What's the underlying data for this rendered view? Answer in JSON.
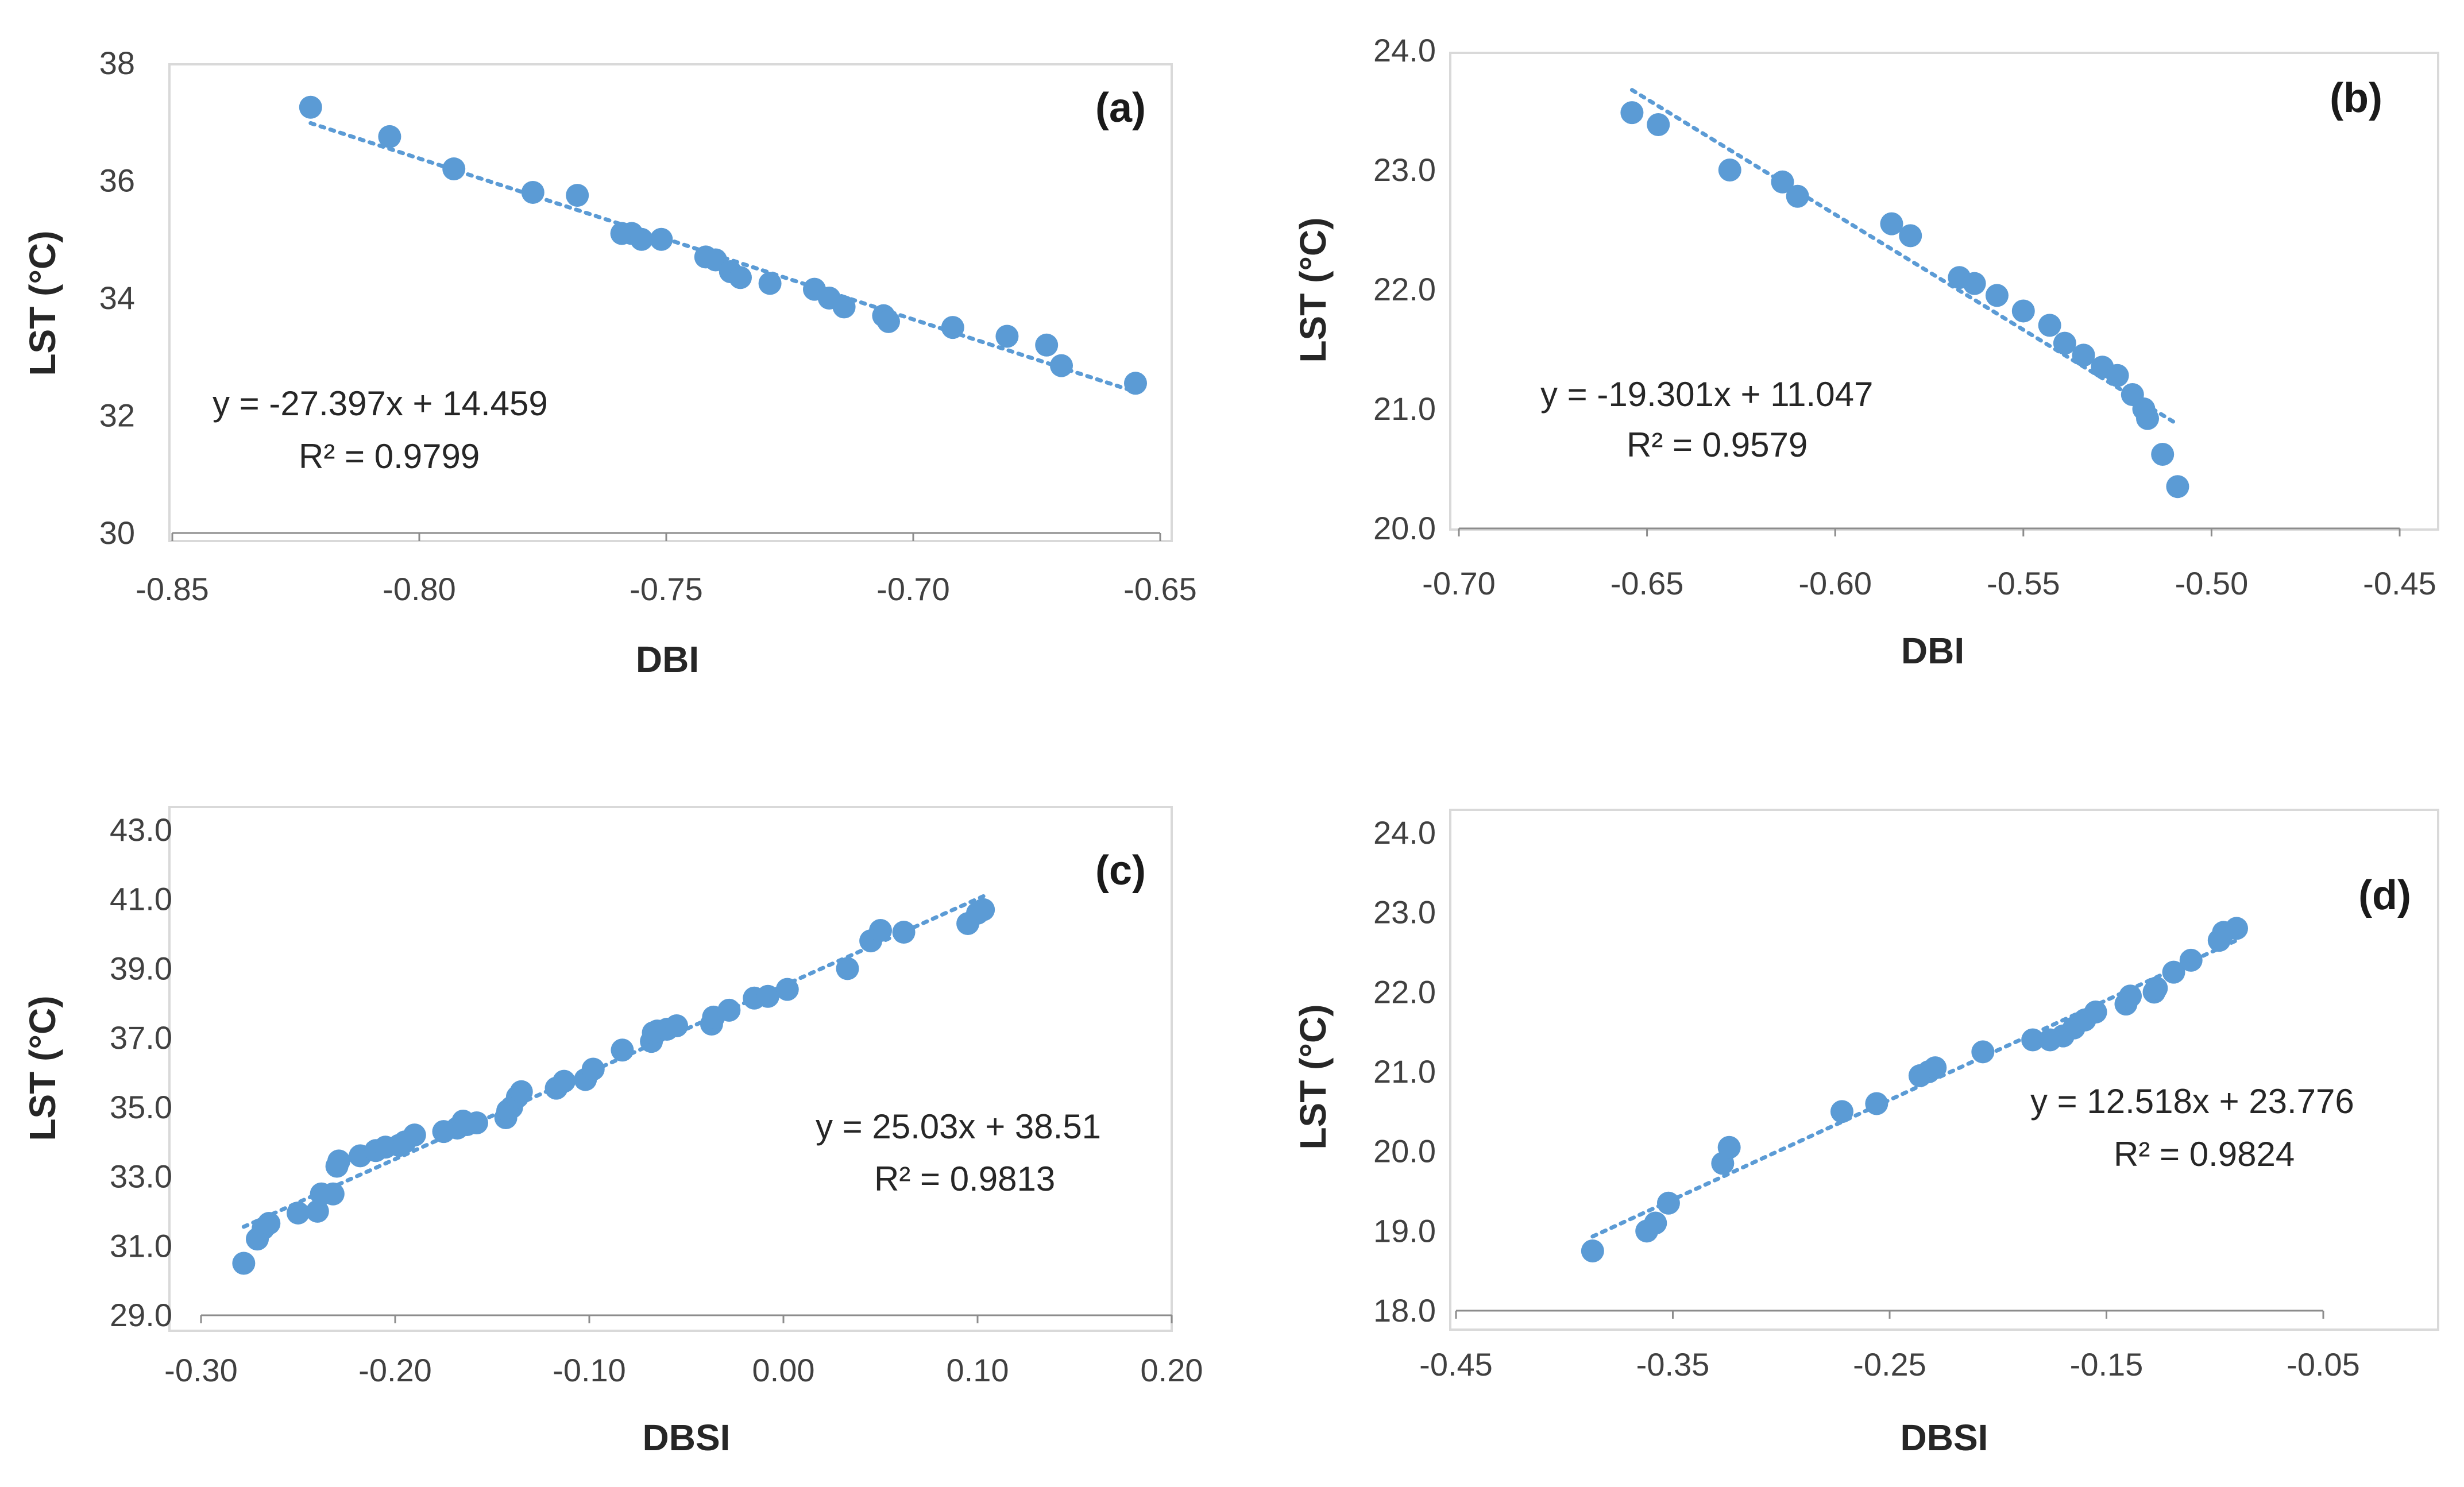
{
  "chart_data": [
    {
      "type": "scatter",
      "panel_label": "(a)",
      "xlabel": "DBI",
      "ylabel": "LST (°C)",
      "xlim": [
        -0.85,
        -0.65
      ],
      "ylim": [
        30,
        38
      ],
      "xticks": [
        "-0.85",
        "-0.80",
        "-0.75",
        "-0.70",
        "-0.65"
      ],
      "yticks": [
        "30",
        "32",
        "34",
        "36",
        "38"
      ],
      "equation": "y = -27.397x + 14.459",
      "r_squared": "R² = 0.9799",
      "trendline": {
        "slope": -27.397,
        "intercept": 14.459,
        "x_range": [
          -0.822,
          -0.655
        ]
      },
      "points": {
        "x": [
          -0.822,
          -0.806,
          -0.793,
          -0.777,
          -0.768,
          -0.759,
          -0.757,
          -0.755,
          -0.751,
          -0.742,
          -0.74,
          -0.737,
          -0.735,
          -0.729,
          -0.72,
          -0.717,
          -0.714,
          -0.706,
          -0.705,
          -0.692,
          -0.681,
          -0.673,
          -0.67,
          -0.655
        ],
        "y": [
          37.25,
          36.75,
          36.2,
          35.8,
          35.75,
          35.1,
          35.1,
          35.0,
          35.0,
          34.7,
          34.65,
          34.45,
          34.35,
          34.25,
          34.15,
          34.0,
          33.85,
          33.7,
          33.6,
          33.5,
          33.35,
          33.2,
          32.85,
          32.55
        ]
      },
      "colors": {
        "marker": "#5b9bd5",
        "trendline": "#5b9bd5"
      }
    },
    {
      "type": "scatter",
      "panel_label": "(b)",
      "xlabel": "DBI",
      "ylabel": "LST (°C)",
      "xlim": [
        -0.7,
        -0.45
      ],
      "ylim": [
        20.0,
        24.0
      ],
      "xticks": [
        "-0.70",
        "-0.65",
        "-0.60",
        "-0.55",
        "-0.50",
        "-0.45"
      ],
      "yticks": [
        "20.0",
        "21.0",
        "22.0",
        "23.0",
        "24.0"
      ],
      "equation": "y = -19.301x + 11.047",
      "r_squared": "R² = 0.9579",
      "trendline": {
        "slope": -19.301,
        "intercept": 11.047,
        "x_range": [
          -0.654,
          -0.509
        ]
      },
      "points": {
        "x": [
          -0.654,
          -0.647,
          -0.628,
          -0.614,
          -0.61,
          -0.585,
          -0.58,
          -0.567,
          -0.563,
          -0.557,
          -0.55,
          -0.543,
          -0.539,
          -0.534,
          -0.529,
          -0.525,
          -0.521,
          -0.518,
          -0.517,
          -0.513,
          -0.509
        ],
        "y": [
          23.48,
          23.38,
          23.0,
          22.9,
          22.78,
          22.55,
          22.45,
          22.1,
          22.05,
          21.95,
          21.82,
          21.7,
          21.55,
          21.45,
          21.35,
          21.28,
          21.12,
          21.0,
          20.92,
          20.62,
          20.35
        ]
      },
      "colors": {
        "marker": "#5b9bd5",
        "trendline": "#5b9bd5"
      }
    },
    {
      "type": "scatter",
      "panel_label": "(c)",
      "xlabel": "DBSI",
      "ylabel": "LST (°C)",
      "xlim": [
        -0.3,
        0.2
      ],
      "ylim": [
        29.0,
        43.0
      ],
      "xticks": [
        "-0.30",
        "-0.20",
        "-0.10",
        "0.00",
        "0.10",
        "0.20"
      ],
      "yticks": [
        "29.0",
        "31.0",
        "33.0",
        "35.0",
        "37.0",
        "39.0",
        "41.0",
        "43.0"
      ],
      "equation": "y = 25.03x + 38.51",
      "r_squared": "R² = 0.9813",
      "trendline": {
        "slope": 25.03,
        "intercept": 38.51,
        "x_range": [
          -0.278,
          0.103
        ]
      },
      "points": {
        "x": [
          -0.278,
          -0.271,
          -0.268,
          -0.265,
          -0.25,
          -0.24,
          -0.238,
          -0.232,
          -0.23,
          -0.229,
          -0.218,
          -0.21,
          -0.205,
          -0.198,
          -0.195,
          -0.19,
          -0.175,
          -0.168,
          -0.165,
          -0.163,
          -0.158,
          -0.143,
          -0.142,
          -0.14,
          -0.137,
          -0.135,
          -0.117,
          -0.113,
          -0.102,
          -0.098,
          -0.083,
          -0.068,
          -0.067,
          -0.065,
          -0.06,
          -0.055,
          -0.037,
          -0.036,
          -0.028,
          -0.015,
          -0.008,
          0.002,
          0.033,
          0.045,
          0.05,
          0.062,
          0.095,
          0.1,
          0.103
        ],
        "y": [
          30.5,
          31.2,
          31.5,
          31.65,
          31.95,
          32.0,
          32.5,
          32.5,
          33.3,
          33.45,
          33.6,
          33.75,
          33.85,
          33.9,
          34.0,
          34.2,
          34.3,
          34.4,
          34.6,
          34.5,
          34.55,
          34.7,
          34.9,
          35.0,
          35.3,
          35.45,
          35.55,
          35.75,
          35.8,
          36.1,
          36.65,
          36.9,
          37.15,
          37.2,
          37.25,
          37.35,
          37.4,
          37.6,
          37.8,
          38.15,
          38.2,
          38.4,
          39.0,
          39.8,
          40.1,
          40.05,
          40.3,
          40.6,
          40.7
        ]
      },
      "colors": {
        "marker": "#5b9bd5",
        "trendline": "#5b9bd5"
      }
    },
    {
      "type": "scatter",
      "panel_label": "(d)",
      "xlabel": "DBSI",
      "ylabel": "LST (°C)",
      "xlim": [
        -0.45,
        -0.05
      ],
      "ylim": [
        18.0,
        24.0
      ],
      "xticks": [
        "-0.45",
        "-0.35",
        "-0.25",
        "-0.15",
        "-0.05"
      ],
      "yticks": [
        "18.0",
        "19.0",
        "20.0",
        "21.0",
        "22.0",
        "23.0",
        "24.0"
      ],
      "equation": "y = 12.518x + 23.776",
      "r_squared": "R² = 0.9824",
      "trendline": {
        "slope": 12.518,
        "intercept": 23.776,
        "x_range": [
          -0.387,
          -0.09
        ]
      },
      "points": {
        "x": [
          -0.387,
          -0.362,
          -0.358,
          -0.352,
          -0.327,
          -0.324,
          -0.272,
          -0.256,
          -0.236,
          -0.232,
          -0.229,
          -0.207,
          -0.184,
          -0.176,
          -0.17,
          -0.165,
          -0.16,
          -0.155,
          -0.141,
          -0.139,
          -0.128,
          -0.127,
          -0.119,
          -0.111,
          -0.098,
          -0.096,
          -0.09
        ],
        "y": [
          18.75,
          19.0,
          19.1,
          19.35,
          19.85,
          20.05,
          20.5,
          20.6,
          20.95,
          21.0,
          21.05,
          21.25,
          21.4,
          21.4,
          21.45,
          21.55,
          21.65,
          21.75,
          21.85,
          21.95,
          22.0,
          22.05,
          22.25,
          22.4,
          22.65,
          22.75,
          22.8
        ]
      },
      "colors": {
        "marker": "#5b9bd5",
        "trendline": "#5b9bd5"
      }
    }
  ]
}
